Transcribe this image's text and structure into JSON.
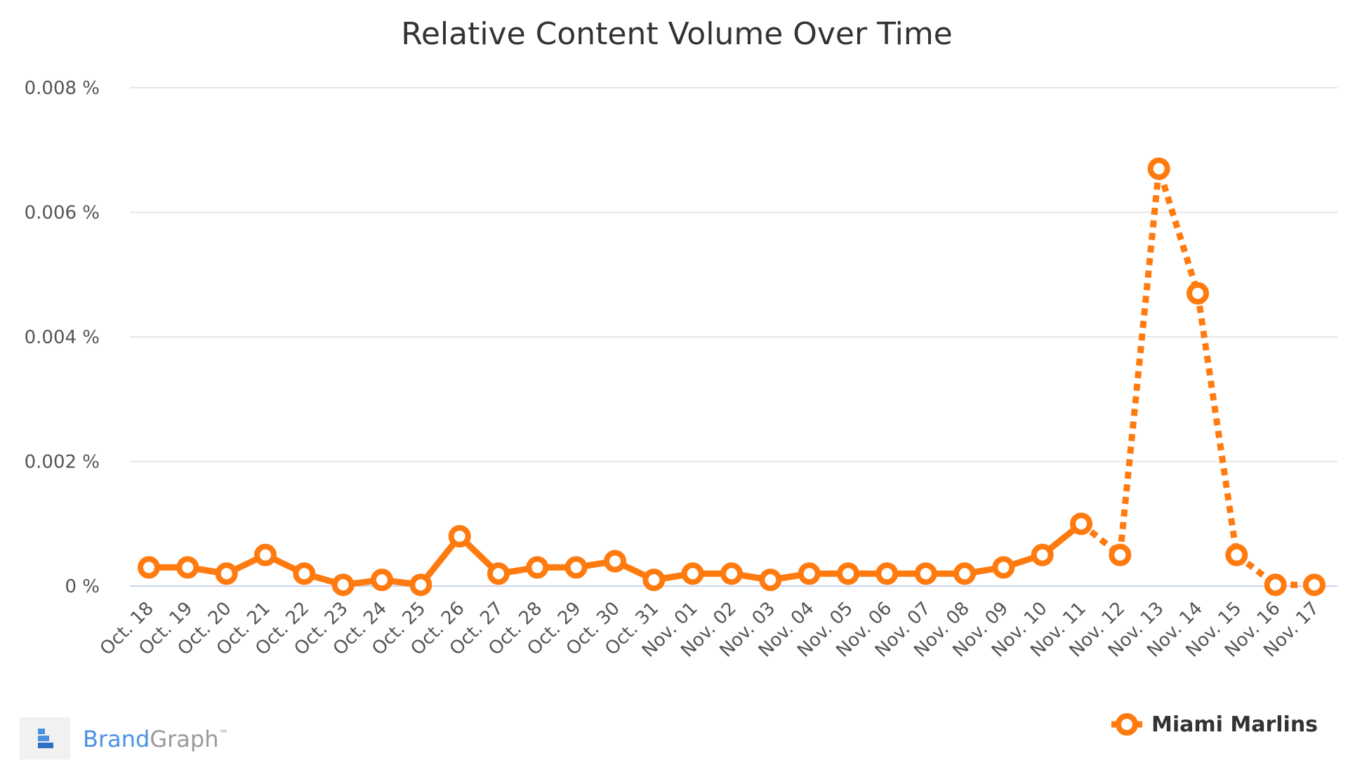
{
  "chart_data": {
    "type": "line",
    "title": "Relative Content Volume Over Time",
    "xlabel": "",
    "ylabel": "",
    "ylim": [
      0,
      0.008
    ],
    "yticks": [
      {
        "value": 0,
        "label": "0 %"
      },
      {
        "value": 0.002,
        "label": "0.002 %"
      },
      {
        "value": 0.004,
        "label": "0.004 %"
      },
      {
        "value": 0.006,
        "label": "0.006 %"
      },
      {
        "value": 0.008,
        "label": "0.008 %"
      }
    ],
    "grid": true,
    "legend_position": "bottom-right",
    "categories": [
      "Oct. 18",
      "Oct. 19",
      "Oct. 20",
      "Oct. 21",
      "Oct. 22",
      "Oct. 23",
      "Oct. 24",
      "Oct. 25",
      "Oct. 26",
      "Oct. 27",
      "Oct. 28",
      "Oct. 29",
      "Oct. 30",
      "Oct. 31",
      "Nov. 01",
      "Nov. 02",
      "Nov. 03",
      "Nov. 04",
      "Nov. 05",
      "Nov. 06",
      "Nov. 07",
      "Nov. 08",
      "Nov. 09",
      "Nov. 10",
      "Nov. 11",
      "Nov. 12",
      "Nov. 13",
      "Nov. 14",
      "Nov. 15",
      "Nov. 16",
      "Nov. 17"
    ],
    "series": [
      {
        "name": "Miami Marlins",
        "color": "#ff7a0f",
        "values": [
          0.0003,
          0.0003,
          0.0002,
          0.0005,
          0.0002,
          2e-05,
          0.0001,
          2e-05,
          0.0008,
          0.0002,
          0.0003,
          0.0003,
          0.0004,
          0.0001,
          0.0002,
          0.0002,
          0.0001,
          0.0002,
          0.0002,
          0.0002,
          0.0002,
          0.0002,
          0.0003,
          0.0005,
          0.001,
          0.0005,
          0.0067,
          0.0047,
          0.0005,
          2e-05,
          2e-05
        ],
        "solid_through_index": 24
      }
    ]
  },
  "brand": {
    "name_part1": "Brand",
    "name_part2": "Graph",
    "trademark": "™",
    "color_blue": "#4a90e2",
    "color_gray": "#9a9a9a",
    "icon": "brandgraph-logo-icon"
  }
}
